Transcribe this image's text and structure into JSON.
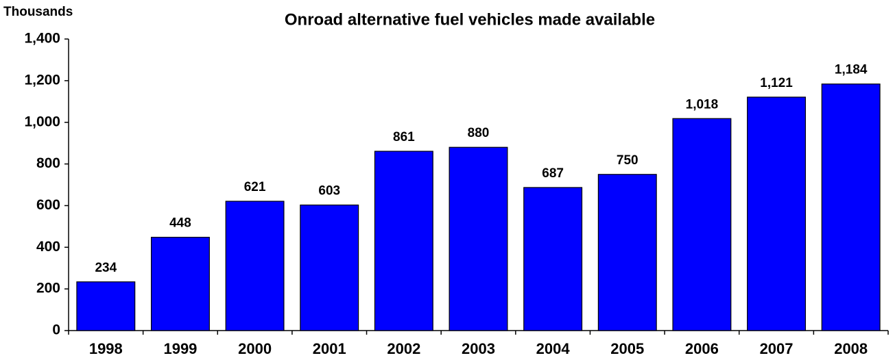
{
  "chart_data": {
    "type": "bar",
    "title": "Onroad alternative fuel vehicles made available",
    "y_label": "Thousands",
    "categories": [
      "1998",
      "1999",
      "2000",
      "2001",
      "2002",
      "2003",
      "2004",
      "2005",
      "2006",
      "2007",
      "2008"
    ],
    "values": [
      234,
      448,
      621,
      603,
      861,
      880,
      687,
      750,
      1018,
      1121,
      1184
    ],
    "value_labels": [
      "234",
      "448",
      "621",
      "603",
      "861",
      "880",
      "687",
      "750",
      "1,018",
      "1,121",
      "1,184"
    ],
    "color": "#0000ff",
    "ylim": [
      0,
      1400
    ],
    "yticks": [
      0,
      200,
      400,
      600,
      800,
      {
        "value": 1000,
        "label": "1,000"
      },
      {
        "value": 1200,
        "label": "1,200"
      },
      {
        "value": 1400,
        "label": "1,400"
      }
    ],
    "grid": false
  }
}
